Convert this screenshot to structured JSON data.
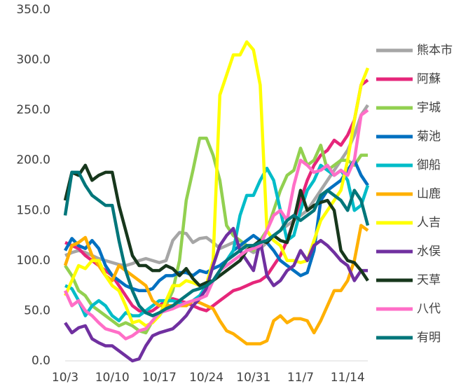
{
  "chart_data": {
    "type": "line",
    "categories": [
      "10/3",
      null,
      null,
      null,
      null,
      null,
      null,
      "10/10",
      null,
      null,
      null,
      null,
      null,
      null,
      "10/17",
      null,
      null,
      null,
      null,
      null,
      null,
      "10/24",
      null,
      null,
      null,
      null,
      null,
      null,
      "10/31",
      null,
      null,
      null,
      null,
      null,
      null,
      "11/7",
      null,
      null,
      null,
      null,
      null,
      null,
      "11/14",
      null,
      null,
      null
    ],
    "ylim": [
      0,
      350
    ],
    "yticks": [
      {
        "value": 0,
        "label": "0.0"
      },
      {
        "value": 50,
        "label": "50.0"
      },
      {
        "value": 100,
        "label": "100.0"
      },
      {
        "value": 150,
        "label": "150.0"
      },
      {
        "value": 200,
        "label": "200.0"
      },
      {
        "value": 250,
        "label": "250.0"
      },
      {
        "value": 300,
        "label": "300.0"
      },
      {
        "value": 350,
        "label": "350.0"
      }
    ],
    "grid": false,
    "legend": "right",
    "series": [
      {
        "name": "熊本市",
        "color": "#a6a6a6",
        "values": [
          105,
          108,
          110,
          108,
          105,
          102,
          100,
          98,
          96,
          95,
          97,
          100,
          102,
          100,
          98,
          100,
          120,
          128,
          127,
          118,
          122,
          123,
          118,
          112,
          115,
          118,
          115,
          112,
          108,
          112,
          118,
          125,
          130,
          135,
          140,
          145,
          150,
          160,
          170,
          180,
          190,
          200,
          210,
          225,
          245,
          255
        ]
      },
      {
        "name": "阿蘇",
        "color": "#e6267a",
        "values": [
          118,
          115,
          112,
          105,
          100,
          95,
          90,
          85,
          75,
          65,
          55,
          50,
          48,
          50,
          55,
          60,
          62,
          60,
          58,
          55,
          52,
          50,
          55,
          60,
          65,
          70,
          72,
          75,
          78,
          80,
          85,
          95,
          105,
          120,
          140,
          160,
          180,
          195,
          205,
          210,
          220,
          215,
          225,
          240,
          275,
          280
        ]
      },
      {
        "name": "宇城",
        "color": "#92d050",
        "values": [
          95,
          85,
          70,
          65,
          55,
          50,
          45,
          40,
          35,
          38,
          35,
          30,
          28,
          40,
          45,
          55,
          70,
          100,
          160,
          190,
          222,
          222,
          205,
          180,
          135,
          125,
          120,
          115,
          110,
          120,
          130,
          150,
          170,
          185,
          190,
          212,
          195,
          200,
          215,
          190,
          195,
          200,
          200,
          195,
          205,
          205
        ]
      },
      {
        "name": "菊池",
        "color": "#0070c0",
        "values": [
          110,
          122,
          115,
          112,
          120,
          112,
          95,
          85,
          80,
          75,
          72,
          70,
          70,
          72,
          80,
          85,
          85,
          88,
          88,
          85,
          90,
          88,
          92,
          95,
          100,
          110,
          115,
          120,
          125,
          120,
          118,
          110,
          100,
          95,
          90,
          85,
          88,
          110,
          160,
          170,
          175,
          180,
          190,
          200,
          185,
          175
        ]
      },
      {
        "name": "御船",
        "color": "#00bcc8",
        "values": [
          75,
          72,
          60,
          45,
          55,
          60,
          55,
          45,
          40,
          48,
          45,
          45,
          50,
          55,
          60,
          60,
          60,
          58,
          55,
          60,
          65,
          75,
          80,
          90,
          100,
          110,
          145,
          165,
          165,
          180,
          192,
          180,
          150,
          120,
          125,
          150,
          170,
          180,
          195,
          190,
          185,
          190,
          180,
          150,
          155,
          175
        ]
      },
      {
        "name": "山鹿",
        "color": "#ffb000",
        "values": [
          95,
          115,
          118,
          123,
          105,
          95,
          85,
          80,
          95,
          90,
          85,
          80,
          75,
          60,
          55,
          55,
          55,
          55,
          55,
          60,
          58,
          55,
          52,
          40,
          30,
          27,
          22,
          17,
          17,
          17,
          20,
          40,
          45,
          38,
          42,
          42,
          40,
          28,
          40,
          55,
          70,
          70,
          80,
          100,
          135,
          130
        ]
      },
      {
        "name": "人吉",
        "color": "#ffff00",
        "values": [
          65,
          80,
          95,
          92,
          100,
          100,
          85,
          75,
          70,
          55,
          38,
          40,
          35,
          38,
          45,
          60,
          75,
          75,
          80,
          78,
          75,
          76,
          100,
          265,
          285,
          305,
          305,
          318,
          310,
          275,
          130,
          120,
          115,
          100,
          100,
          98,
          100,
          120,
          140,
          150,
          160,
          170,
          200,
          240,
          275,
          292
        ]
      },
      {
        "name": "水俣",
        "color": "#7030a0",
        "values": [
          38,
          28,
          33,
          35,
          22,
          18,
          15,
          15,
          10,
          5,
          0,
          2,
          15,
          25,
          28,
          30,
          32,
          38,
          45,
          55,
          62,
          72,
          95,
          115,
          125,
          132,
          110,
          100,
          90,
          120,
          85,
          75,
          80,
          90,
          95,
          110,
          100,
          115,
          120,
          115,
          108,
          100,
          95,
          80,
          90,
          90
        ]
      },
      {
        "name": "天草",
        "color": "#17371c",
        "values": [
          160,
          188,
          185,
          195,
          180,
          185,
          188,
          188,
          155,
          130,
          105,
          95,
          95,
          90,
          90,
          95,
          92,
          85,
          92,
          82,
          75,
          78,
          80,
          85,
          90,
          95,
          100,
          110,
          115,
          120,
          118,
          125,
          120,
          118,
          140,
          170,
          150,
          155,
          158,
          160,
          150,
          110,
          100,
          98,
          90,
          80
        ]
      },
      {
        "name": "八代",
        "color": "#ff6ec7",
        "values": [
          70,
          55,
          60,
          50,
          45,
          38,
          32,
          30,
          28,
          22,
          25,
          30,
          32,
          40,
          48,
          50,
          52,
          55,
          58,
          60,
          62,
          65,
          80,
          90,
          95,
          100,
          105,
          110,
          112,
          115,
          130,
          145,
          150,
          140,
          175,
          200,
          195,
          188,
          190,
          195,
          185,
          190,
          185,
          200,
          245,
          250
        ]
      },
      {
        "name": "有明",
        "color": "#00767a",
        "values": [
          145,
          188,
          188,
          175,
          165,
          160,
          155,
          155,
          120,
          90,
          70,
          55,
          48,
          45,
          48,
          52,
          55,
          60,
          65,
          70,
          72,
          75,
          80,
          90,
          100,
          105,
          110,
          115,
          115,
          118,
          120,
          125,
          130,
          140,
          145,
          140,
          145,
          150,
          165,
          170,
          165,
          160,
          150,
          170,
          160,
          135
        ]
      }
    ]
  }
}
